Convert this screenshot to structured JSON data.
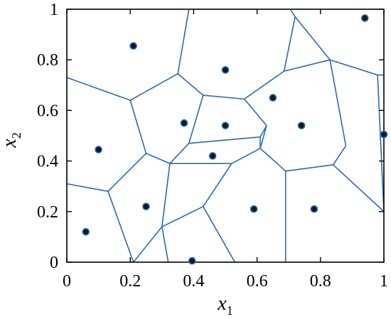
{
  "chart_data": {
    "type": "scatter",
    "subtype": "voronoi-diagram",
    "title": "",
    "xlabel": "x",
    "xlabel_sub": "1",
    "ylabel": "x",
    "ylabel_sub": "2",
    "xlim": [
      0,
      1
    ],
    "ylim": [
      0,
      1
    ],
    "xticks": [
      0,
      0.2,
      0.4,
      0.6,
      0.8,
      1
    ],
    "yticks": [
      0,
      0.2,
      0.4,
      0.6,
      0.8,
      1
    ],
    "xtick_labels": [
      "0",
      "0.2",
      "0.4",
      "0.6",
      "0.8",
      "1"
    ],
    "ytick_labels": [
      "0",
      "0.2",
      "0.4",
      "0.6",
      "0.8",
      "1"
    ],
    "grid": false,
    "legend": "none",
    "colors": {
      "edge": "#2a6ab0",
      "point_fill": "#0b1a2e",
      "point_ring": "#2a6ab0",
      "axis": "#000000"
    },
    "points": [
      {
        "x": 0.21,
        "y": 0.855
      },
      {
        "x": 0.94,
        "y": 0.965
      },
      {
        "x": 0.5,
        "y": 0.76
      },
      {
        "x": 0.65,
        "y": 0.65
      },
      {
        "x": 0.37,
        "y": 0.55
      },
      {
        "x": 0.5,
        "y": 0.54
      },
      {
        "x": 0.74,
        "y": 0.54
      },
      {
        "x": 0.1,
        "y": 0.445
      },
      {
        "x": 1.0,
        "y": 0.505
      },
      {
        "x": 0.46,
        "y": 0.42
      },
      {
        "x": 0.25,
        "y": 0.22
      },
      {
        "x": 0.59,
        "y": 0.21
      },
      {
        "x": 0.78,
        "y": 0.21
      },
      {
        "x": 0.06,
        "y": 0.12
      },
      {
        "x": 0.395,
        "y": 0.005
      }
    ],
    "edges": [
      [
        [
          0.0,
          0.73
        ],
        [
          0.2,
          0.64
        ]
      ],
      [
        [
          0.2,
          0.64
        ],
        [
          0.35,
          0.745
        ]
      ],
      [
        [
          0.35,
          0.745
        ],
        [
          0.385,
          1.0
        ]
      ],
      [
        [
          0.35,
          0.745
        ],
        [
          0.43,
          0.66
        ]
      ],
      [
        [
          0.2,
          0.64
        ],
        [
          0.25,
          0.43
        ]
      ],
      [
        [
          0.25,
          0.43
        ],
        [
          0.325,
          0.39
        ]
      ],
      [
        [
          0.325,
          0.39
        ],
        [
          0.385,
          0.47
        ]
      ],
      [
        [
          0.385,
          0.47
        ],
        [
          0.43,
          0.66
        ]
      ],
      [
        [
          0.43,
          0.66
        ],
        [
          0.56,
          0.645
        ]
      ],
      [
        [
          0.56,
          0.645
        ],
        [
          0.63,
          0.54
        ]
      ],
      [
        [
          0.63,
          0.54
        ],
        [
          0.61,
          0.495
        ]
      ],
      [
        [
          0.61,
          0.495
        ],
        [
          0.385,
          0.47
        ]
      ],
      [
        [
          0.56,
          0.645
        ],
        [
          0.685,
          0.755
        ]
      ],
      [
        [
          0.685,
          0.755
        ],
        [
          0.83,
          0.8
        ]
      ],
      [
        [
          0.685,
          0.755
        ],
        [
          0.72,
          0.97
        ]
      ],
      [
        [
          0.72,
          0.97
        ],
        [
          0.705,
          1.0
        ]
      ],
      [
        [
          0.72,
          0.97
        ],
        [
          0.83,
          0.8
        ]
      ],
      [
        [
          0.83,
          0.8
        ],
        [
          0.98,
          0.74
        ]
      ],
      [
        [
          0.98,
          0.74
        ],
        [
          1.0,
          0.74
        ]
      ],
      [
        [
          0.98,
          0.74
        ],
        [
          1.0,
          0.2
        ]
      ],
      [
        [
          0.83,
          0.8
        ],
        [
          0.88,
          0.46
        ]
      ],
      [
        [
          0.88,
          0.46
        ],
        [
          0.84,
          0.385
        ]
      ],
      [
        [
          0.84,
          0.385
        ],
        [
          0.69,
          0.36
        ]
      ],
      [
        [
          0.69,
          0.36
        ],
        [
          0.61,
          0.45
        ]
      ],
      [
        [
          0.63,
          0.54
        ],
        [
          0.61,
          0.45
        ]
      ],
      [
        [
          0.61,
          0.45
        ],
        [
          0.61,
          0.495
        ]
      ],
      [
        [
          0.69,
          0.36
        ],
        [
          0.69,
          0.0
        ]
      ],
      [
        [
          0.84,
          0.385
        ],
        [
          1.0,
          0.2
        ]
      ],
      [
        [
          0.61,
          0.45
        ],
        [
          0.52,
          0.39
        ]
      ],
      [
        [
          0.52,
          0.39
        ],
        [
          0.325,
          0.39
        ]
      ],
      [
        [
          0.52,
          0.39
        ],
        [
          0.43,
          0.22
        ]
      ],
      [
        [
          0.43,
          0.22
        ],
        [
          0.53,
          0.0
        ]
      ],
      [
        [
          0.43,
          0.22
        ],
        [
          0.3,
          0.14
        ]
      ],
      [
        [
          0.3,
          0.14
        ],
        [
          0.325,
          0.39
        ]
      ],
      [
        [
          0.3,
          0.14
        ],
        [
          0.21,
          0.0
        ]
      ],
      [
        [
          0.25,
          0.43
        ],
        [
          0.13,
          0.28
        ]
      ],
      [
        [
          0.13,
          0.28
        ],
        [
          0.0,
          0.31
        ]
      ],
      [
        [
          0.13,
          0.28
        ],
        [
          0.21,
          0.0
        ]
      ],
      [
        [
          0.3,
          0.14
        ],
        [
          0.32,
          0.0
        ]
      ]
    ]
  }
}
